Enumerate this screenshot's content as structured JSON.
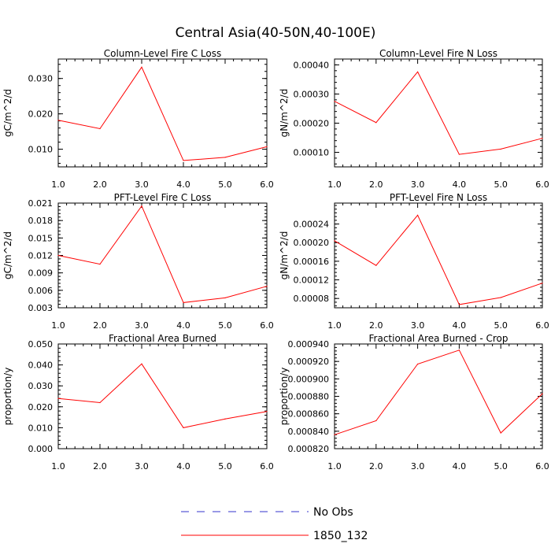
{
  "figure": {
    "title": "Central Asia(40-50N,40-100E)",
    "series_color": "#ff0000",
    "obs_color": "#3333cc"
  },
  "legend": {
    "items": [
      {
        "label": "No Obs",
        "style": "dashed",
        "color": "#3333cc"
      },
      {
        "label": "1850_132",
        "style": "solid",
        "color": "#ff0000"
      }
    ]
  },
  "chart_data": [
    {
      "type": "line",
      "title": "Column-Level Fire C Loss",
      "xlabel": "",
      "ylabel": "gC/m^2/d",
      "x": [
        1,
        2,
        3,
        4,
        5,
        6
      ],
      "xticks": [
        "1.0",
        "2.0",
        "3.0",
        "4.0",
        "5.0",
        "6.0"
      ],
      "xlim": [
        1,
        6
      ],
      "ylim": [
        0.005,
        0.0355
      ],
      "yticks": [
        0.01,
        0.02,
        0.03
      ],
      "yticklabels": [
        "0.010",
        "0.020",
        "0.030"
      ],
      "series": [
        {
          "name": "1850_132",
          "values": [
            0.0182,
            0.0158,
            0.0332,
            0.0068,
            0.0077,
            0.0107
          ]
        }
      ]
    },
    {
      "type": "line",
      "title": "Column-Level Fire N Loss",
      "xlabel": "",
      "ylabel": "gN/m^2/d",
      "x": [
        1,
        2,
        3,
        4,
        5,
        6
      ],
      "xticks": [
        "1.0",
        "2.0",
        "3.0",
        "4.0",
        "5.0",
        "6.0"
      ],
      "xlim": [
        1,
        6
      ],
      "ylim": [
        5e-05,
        0.00042
      ],
      "yticks": [
        0.0001,
        0.0002,
        0.0003,
        0.0004
      ],
      "yticklabels": [
        "0.00010",
        "0.00020",
        "0.00030",
        "0.00040"
      ],
      "series": [
        {
          "name": "1850_132",
          "values": [
            0.000275,
            0.000202,
            0.000376,
            9.3e-05,
            0.000111,
            0.000148
          ]
        }
      ]
    },
    {
      "type": "line",
      "title": "PFT-Level Fire C Loss",
      "xlabel": "",
      "ylabel": "gC/m^2/d",
      "x": [
        1,
        2,
        3,
        4,
        5,
        6
      ],
      "xticks": [
        "1.0",
        "2.0",
        "3.0",
        "4.0",
        "5.0",
        "6.0"
      ],
      "xlim": [
        1,
        6
      ],
      "ylim": [
        0.003,
        0.021
      ],
      "yticks": [
        0.003,
        0.006,
        0.009,
        0.012,
        0.015,
        0.018,
        0.021
      ],
      "yticklabels": [
        "0.003",
        "0.006",
        "0.009",
        "0.012",
        "0.015",
        "0.018",
        "0.021"
      ],
      "series": [
        {
          "name": "1850_132",
          "values": [
            0.012,
            0.0105,
            0.0205,
            0.0039,
            0.0047,
            0.0067
          ]
        }
      ]
    },
    {
      "type": "line",
      "title": "PFT-Level Fire N Loss",
      "xlabel": "",
      "ylabel": "gN/m^2/d",
      "x": [
        1,
        2,
        3,
        4,
        5,
        6
      ],
      "xticks": [
        "1.0",
        "2.0",
        "3.0",
        "4.0",
        "5.0",
        "6.0"
      ],
      "xlim": [
        1,
        6
      ],
      "ylim": [
        6e-05,
        0.000285
      ],
      "yticks": [
        8e-05,
        0.00012,
        0.00016,
        0.0002,
        0.00024
      ],
      "yticklabels": [
        "0.00008",
        "0.00012",
        "0.00016",
        "0.00020",
        "0.00024"
      ],
      "series": [
        {
          "name": "1850_132",
          "values": [
            0.000204,
            0.000151,
            0.000259,
            6.7e-05,
            8.2e-05,
            0.000113
          ]
        }
      ]
    },
    {
      "type": "line",
      "title": "Fractional Area Burned",
      "xlabel": "",
      "ylabel": "proportion/y",
      "x": [
        1,
        2,
        3,
        4,
        5,
        6
      ],
      "xticks": [
        "1.0",
        "2.0",
        "3.0",
        "4.0",
        "5.0",
        "6.0"
      ],
      "xlim": [
        1,
        6
      ],
      "ylim": [
        0.0,
        0.05
      ],
      "yticks": [
        0.0,
        0.01,
        0.02,
        0.03,
        0.04,
        0.05
      ],
      "yticklabels": [
        "0.000",
        "0.010",
        "0.020",
        "0.030",
        "0.040",
        "0.050"
      ],
      "series": [
        {
          "name": "1850_132",
          "values": [
            0.024,
            0.022,
            0.0405,
            0.01,
            0.0142,
            0.0178
          ]
        }
      ]
    },
    {
      "type": "line",
      "title": "Fractional Area Burned - Crop",
      "xlabel": "",
      "ylabel": "proportion/y",
      "x": [
        1,
        2,
        3,
        4,
        5,
        6
      ],
      "xticks": [
        "1.0",
        "2.0",
        "3.0",
        "4.0",
        "5.0",
        "6.0"
      ],
      "xlim": [
        1,
        6
      ],
      "ylim": [
        0.00082,
        0.00094
      ],
      "yticks": [
        0.00082,
        0.00084,
        0.00086,
        0.00088,
        0.0009,
        0.00092,
        0.00094
      ],
      "yticklabels": [
        "0.000820",
        "0.000840",
        "0.000860",
        "0.000880",
        "0.000900",
        "0.000920",
        "0.000940"
      ],
      "series": [
        {
          "name": "1850_132",
          "values": [
            0.000836,
            0.000852,
            0.000917,
            0.000933,
            0.000838,
            0.000883
          ]
        }
      ]
    }
  ]
}
